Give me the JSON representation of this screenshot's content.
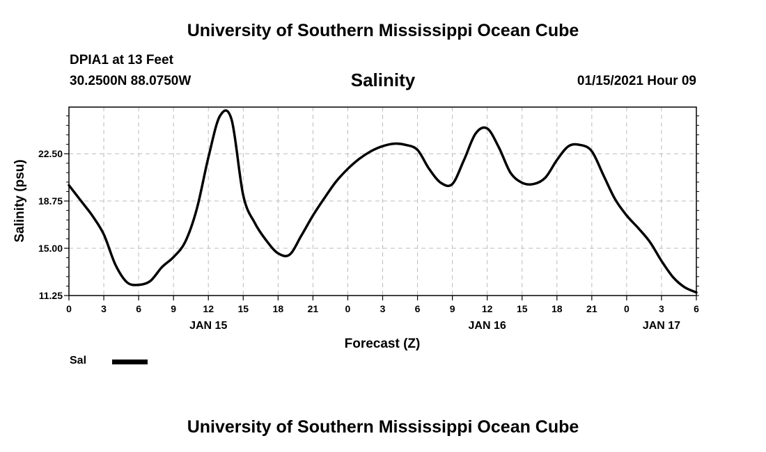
{
  "header": {
    "title_top": "University of Southern Mississippi Ocean Cube",
    "title_bottom": "University of Southern Mississippi Ocean Cube",
    "station": "DPIA1 at 13 Feet",
    "coords": "30.2500N 88.0750W",
    "datetime": "01/15/2021 Hour 09"
  },
  "legend": {
    "label": "Sal",
    "color": "#000000"
  },
  "chart_data": {
    "type": "line",
    "title": "Salinity",
    "xlabel": "Forecast (Z)",
    "ylabel": "Salinity (psu)",
    "ylim": [
      11.25,
      26.2
    ],
    "xlim": [
      0,
      54
    ],
    "grid": true,
    "y_ticks": [
      "11.25",
      "15.00",
      "18.75",
      "22.50"
    ],
    "y_tick_values": [
      11.25,
      15.0,
      18.75,
      22.5
    ],
    "x_ticks": [
      "0",
      "3",
      "6",
      "9",
      "12",
      "15",
      "18",
      "21",
      "0",
      "3",
      "6",
      "9",
      "12",
      "15",
      "18",
      "21",
      "0",
      "3",
      "6"
    ],
    "date_labels": [
      {
        "x": 12,
        "label": "JAN 15"
      },
      {
        "x": 36,
        "label": "JAN 16"
      },
      {
        "x": 51,
        "label": "JAN 17"
      }
    ],
    "series": [
      {
        "name": "Sal",
        "x": [
          0,
          1,
          2,
          3,
          4,
          5,
          6,
          7,
          8,
          9,
          10,
          11,
          12,
          13,
          14,
          15,
          16,
          17,
          18,
          19,
          20,
          21,
          22,
          23,
          24,
          25,
          26,
          27,
          28,
          29,
          30,
          31,
          32,
          33,
          34,
          35,
          36,
          37,
          38,
          39,
          40,
          41,
          42,
          43,
          44,
          45,
          46,
          47,
          48,
          49,
          50,
          51,
          52,
          53,
          54
        ],
        "values": [
          20.0,
          18.8,
          17.6,
          16.1,
          13.7,
          12.3,
          12.1,
          12.4,
          13.5,
          14.3,
          15.5,
          18.1,
          22.2,
          25.5,
          25.2,
          19.2,
          17.0,
          15.6,
          14.6,
          14.5,
          16.0,
          17.6,
          19.0,
          20.3,
          21.3,
          22.1,
          22.7,
          23.1,
          23.3,
          23.2,
          22.8,
          21.3,
          20.2,
          20.1,
          22.0,
          24.1,
          24.5,
          23.0,
          21.0,
          20.2,
          20.1,
          20.6,
          22.0,
          23.1,
          23.2,
          22.7,
          20.8,
          18.9,
          17.6,
          16.6,
          15.5,
          14.0,
          12.7,
          11.9,
          11.5
        ]
      }
    ]
  }
}
